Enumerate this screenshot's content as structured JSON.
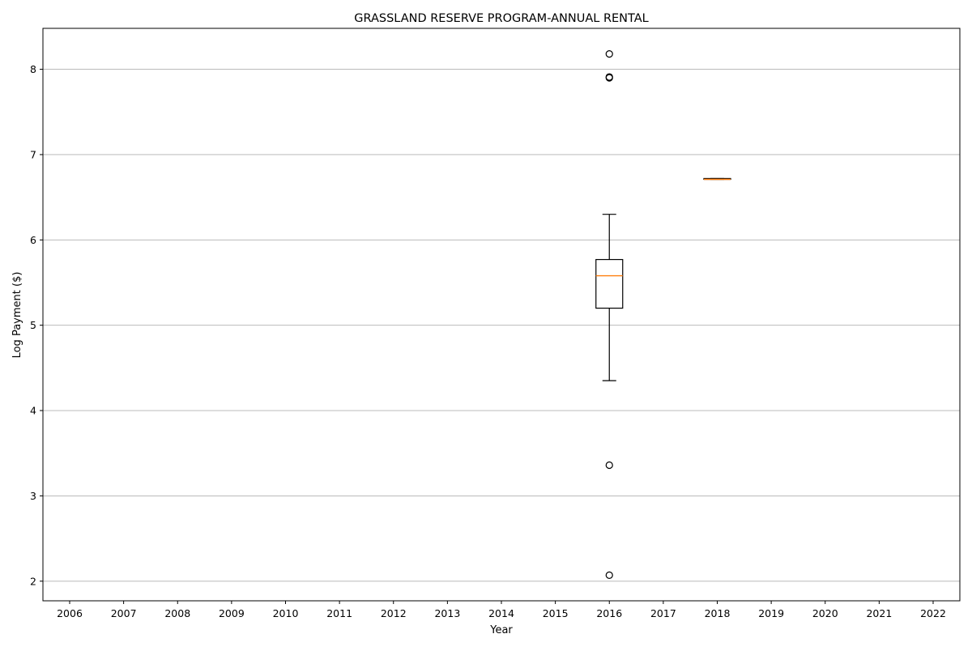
{
  "chart_data": {
    "type": "box",
    "title": "GRASSLAND RESERVE PROGRAM-ANNUAL RENTAL",
    "xlabel": "Year",
    "ylabel": "Log Payment ($)",
    "categories": [
      "2006",
      "2007",
      "2008",
      "2009",
      "2010",
      "2011",
      "2012",
      "2013",
      "2014",
      "2015",
      "2016",
      "2017",
      "2018",
      "2019",
      "2020",
      "2021",
      "2022"
    ],
    "ylim": [
      1.77,
      8.48
    ],
    "yticks": [
      2,
      3,
      4,
      5,
      6,
      7,
      8
    ],
    "grid": "y",
    "boxes": [
      {
        "category": "2016",
        "whisker_low": 4.35,
        "q1": 5.2,
        "median": 5.58,
        "q3": 5.77,
        "whisker_high": 6.3,
        "outliers": [
          8.18,
          7.91,
          7.9,
          3.36,
          2.07
        ]
      },
      {
        "category": "2018",
        "whisker_low": 6.71,
        "q1": 6.71,
        "median": 6.71,
        "q3": 6.72,
        "whisker_high": 6.72,
        "outliers": []
      }
    ],
    "colors": {
      "box": "#000000",
      "median": "#ff7f0e",
      "grid": "#b0b0b0"
    }
  }
}
